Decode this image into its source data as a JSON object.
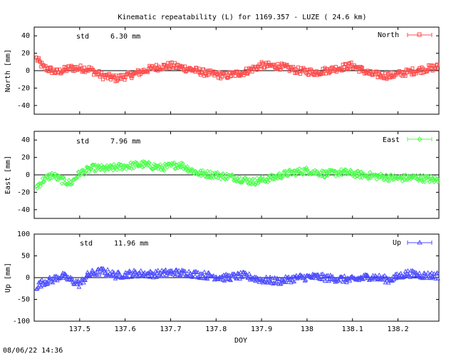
{
  "chart_data": [
    {
      "type": "scatter",
      "title": "Kinematic repeatability (L) for 1169.357 - LUZE  ( 24.6 km)",
      "ylabel": "North [mm]",
      "ylim": [
        -50,
        50
      ],
      "yticks": [
        "40",
        "20",
        "0",
        "-20",
        "-40"
      ],
      "ytick_values": [
        40,
        20,
        0,
        -20,
        -40
      ],
      "series": [
        {
          "name": "North",
          "color": "#ff4d4d",
          "marker": "square"
        }
      ],
      "std_label": "std",
      "std_value": "6.30 mm",
      "data_points": [
        {
          "x": 137.405,
          "y": 14
        },
        {
          "x": 137.42,
          "y": 4
        },
        {
          "x": 137.45,
          "y": -2
        },
        {
          "x": 137.48,
          "y": 3
        },
        {
          "x": 137.52,
          "y": 2
        },
        {
          "x": 137.55,
          "y": -6
        },
        {
          "x": 137.58,
          "y": -9
        },
        {
          "x": 137.62,
          "y": -4
        },
        {
          "x": 137.66,
          "y": 3
        },
        {
          "x": 137.7,
          "y": 6
        },
        {
          "x": 137.74,
          "y": 2
        },
        {
          "x": 137.78,
          "y": -3
        },
        {
          "x": 137.82,
          "y": -6
        },
        {
          "x": 137.86,
          "y": -2
        },
        {
          "x": 137.9,
          "y": 6
        },
        {
          "x": 137.94,
          "y": 5
        },
        {
          "x": 137.98,
          "y": 0
        },
        {
          "x": 138.02,
          "y": -2
        },
        {
          "x": 138.06,
          "y": 2
        },
        {
          "x": 138.1,
          "y": 6
        },
        {
          "x": 138.14,
          "y": -4
        },
        {
          "x": 138.18,
          "y": -6
        },
        {
          "x": 138.22,
          "y": -2
        },
        {
          "x": 138.26,
          "y": 2
        },
        {
          "x": 138.285,
          "y": 4
        }
      ],
      "noise_mm": 4
    },
    {
      "type": "scatter",
      "ylabel": "East [mm]",
      "ylim": [
        -50,
        50
      ],
      "yticks": [
        "40",
        "20",
        "0",
        "-20",
        "-40"
      ],
      "ytick_values": [
        40,
        20,
        0,
        -20,
        -40
      ],
      "series": [
        {
          "name": "East",
          "color": "#4dff4d",
          "marker": "diamond"
        }
      ],
      "std_label": "std",
      "std_value": "7.96 mm",
      "data_points": [
        {
          "x": 137.405,
          "y": -14
        },
        {
          "x": 137.42,
          "y": -6
        },
        {
          "x": 137.44,
          "y": 0
        },
        {
          "x": 137.46,
          "y": -6
        },
        {
          "x": 137.48,
          "y": -10
        },
        {
          "x": 137.5,
          "y": 2
        },
        {
          "x": 137.53,
          "y": 8
        },
        {
          "x": 137.56,
          "y": 7
        },
        {
          "x": 137.6,
          "y": 10
        },
        {
          "x": 137.64,
          "y": 12
        },
        {
          "x": 137.68,
          "y": 8
        },
        {
          "x": 137.72,
          "y": 12
        },
        {
          "x": 137.76,
          "y": 2
        },
        {
          "x": 137.8,
          "y": 0
        },
        {
          "x": 137.84,
          "y": -3
        },
        {
          "x": 137.88,
          "y": -8
        },
        {
          "x": 137.92,
          "y": -4
        },
        {
          "x": 137.96,
          "y": 2
        },
        {
          "x": 138.0,
          "y": 5
        },
        {
          "x": 138.04,
          "y": 1
        },
        {
          "x": 138.08,
          "y": 3
        },
        {
          "x": 138.12,
          "y": 0
        },
        {
          "x": 138.16,
          "y": -2
        },
        {
          "x": 138.2,
          "y": -4
        },
        {
          "x": 138.24,
          "y": -3
        },
        {
          "x": 138.285,
          "y": -6
        }
      ],
      "noise_mm": 4
    },
    {
      "type": "scatter",
      "ylabel": "Up [mm]",
      "xlabel": "DOY",
      "ylim": [
        -100,
        100
      ],
      "xlim": [
        137.4,
        138.29
      ],
      "yticks": [
        "100",
        "50",
        "0",
        "-50",
        "-100"
      ],
      "ytick_values": [
        100,
        50,
        0,
        -50,
        -100
      ],
      "xticks": [
        "137.5",
        "137.6",
        "137.7",
        "137.8",
        "137.9",
        "138",
        "138.1",
        "138.2"
      ],
      "xtick_values": [
        137.5,
        137.6,
        137.7,
        137.8,
        137.9,
        138.0,
        138.1,
        138.2
      ],
      "series": [
        {
          "name": "Up",
          "color": "#4d4dff",
          "marker": "triangle"
        }
      ],
      "std_label": "std",
      "std_value": "11.96 mm",
      "data_points": [
        {
          "x": 137.405,
          "y": -20
        },
        {
          "x": 137.42,
          "y": -10
        },
        {
          "x": 137.44,
          "y": -5
        },
        {
          "x": 137.46,
          "y": 5
        },
        {
          "x": 137.48,
          "y": -5
        },
        {
          "x": 137.5,
          "y": -15
        },
        {
          "x": 137.52,
          "y": 8
        },
        {
          "x": 137.55,
          "y": 15
        },
        {
          "x": 137.58,
          "y": 5
        },
        {
          "x": 137.62,
          "y": 10
        },
        {
          "x": 137.66,
          "y": 8
        },
        {
          "x": 137.7,
          "y": 12
        },
        {
          "x": 137.74,
          "y": 10
        },
        {
          "x": 137.78,
          "y": 5
        },
        {
          "x": 137.82,
          "y": 0
        },
        {
          "x": 137.86,
          "y": 5
        },
        {
          "x": 137.9,
          "y": -5
        },
        {
          "x": 137.94,
          "y": -8
        },
        {
          "x": 137.98,
          "y": 0
        },
        {
          "x": 138.02,
          "y": 2
        },
        {
          "x": 138.06,
          "y": -2
        },
        {
          "x": 138.1,
          "y": -5
        },
        {
          "x": 138.14,
          "y": 3
        },
        {
          "x": 138.18,
          "y": -5
        },
        {
          "x": 138.22,
          "y": 10
        },
        {
          "x": 138.26,
          "y": 5
        },
        {
          "x": 138.285,
          "y": 5
        }
      ],
      "noise_mm": 8
    }
  ],
  "footer": {
    "timestamp": "08/06/22 14:36"
  }
}
